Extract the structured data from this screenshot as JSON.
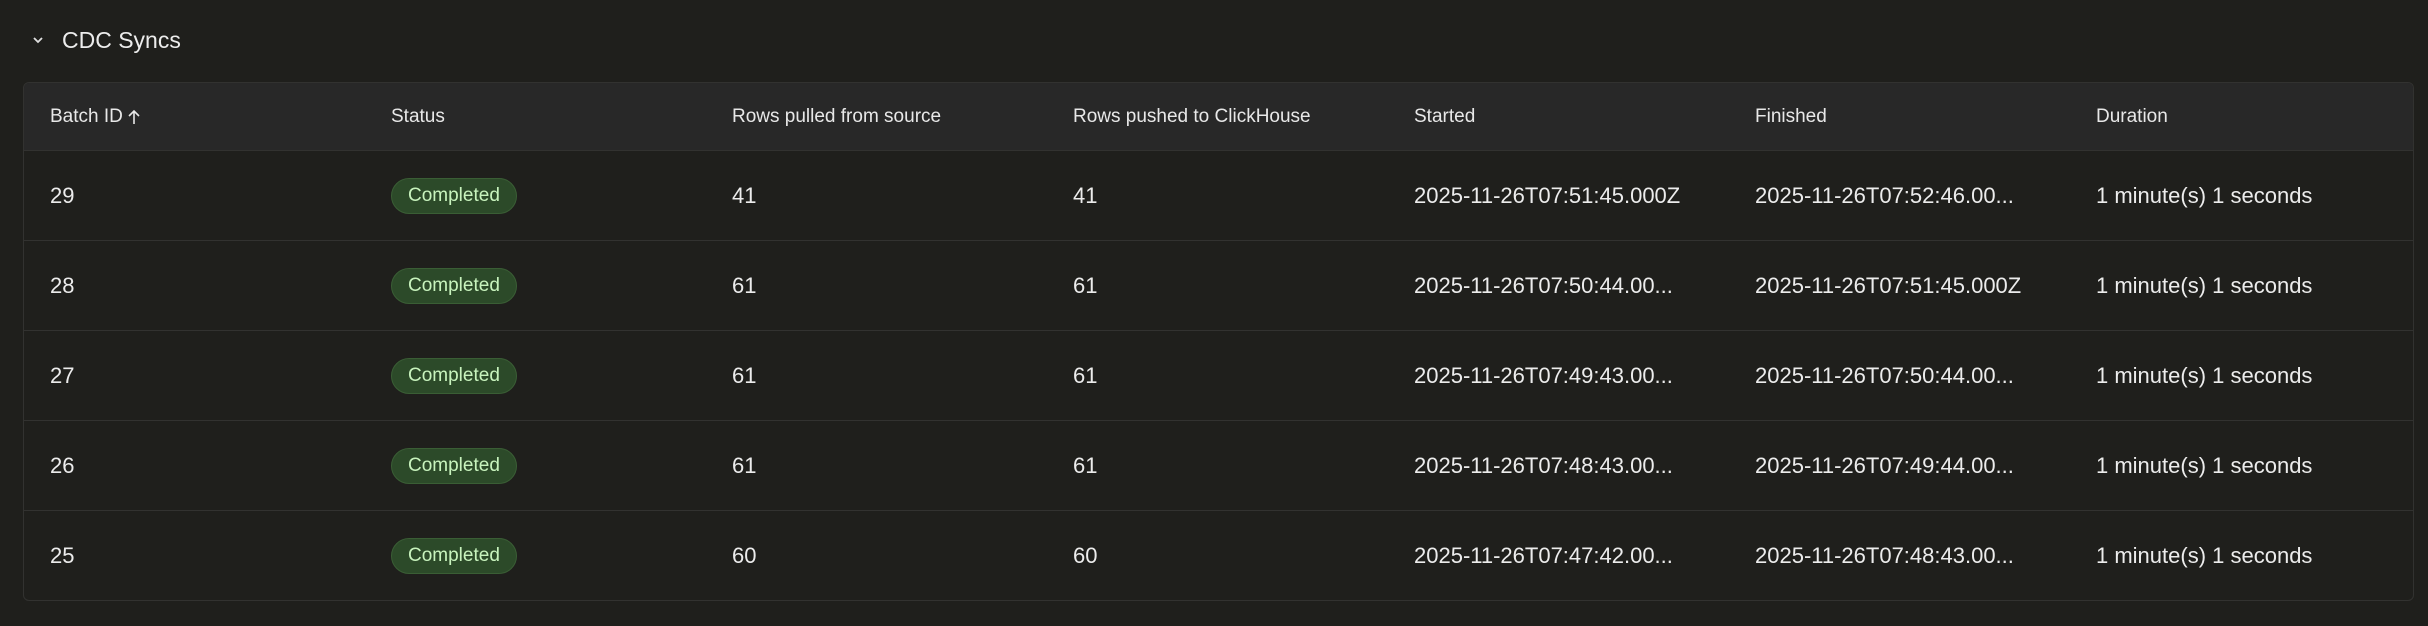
{
  "section": {
    "title": "CDC Syncs",
    "icon": "chevron-down-icon"
  },
  "table": {
    "columns": [
      "Batch ID",
      "Status",
      "Rows pulled from source",
      "Rows pushed to ClickHouse",
      "Started",
      "Finished",
      "Duration"
    ],
    "sort": {
      "column": "Batch ID",
      "direction": "ascending",
      "icon": "arrow-up-icon"
    },
    "status_color": "#2c4a29",
    "rows": [
      {
        "batch_id": "29",
        "status": "Completed",
        "rows_pulled": "41",
        "rows_pushed": "41",
        "started": "2025-11-26T07:51:45.000Z",
        "finished": "2025-11-26T07:52:46.00...",
        "duration": "1 minute(s) 1 seconds"
      },
      {
        "batch_id": "28",
        "status": "Completed",
        "rows_pulled": "61",
        "rows_pushed": "61",
        "started": "2025-11-26T07:50:44.00...",
        "finished": "2025-11-26T07:51:45.000Z",
        "duration": "1 minute(s) 1 seconds"
      },
      {
        "batch_id": "27",
        "status": "Completed",
        "rows_pulled": "61",
        "rows_pushed": "61",
        "started": "2025-11-26T07:49:43.00...",
        "finished": "2025-11-26T07:50:44.00...",
        "duration": "1 minute(s) 1 seconds"
      },
      {
        "batch_id": "26",
        "status": "Completed",
        "rows_pulled": "61",
        "rows_pushed": "61",
        "started": "2025-11-26T07:48:43.00...",
        "finished": "2025-11-26T07:49:44.00...",
        "duration": "1 minute(s) 1 seconds"
      },
      {
        "batch_id": "25",
        "status": "Completed",
        "rows_pulled": "60",
        "rows_pushed": "60",
        "started": "2025-11-26T07:47:42.00...",
        "finished": "2025-11-26T07:48:43.00...",
        "duration": "1 minute(s) 1 seconds"
      }
    ]
  }
}
